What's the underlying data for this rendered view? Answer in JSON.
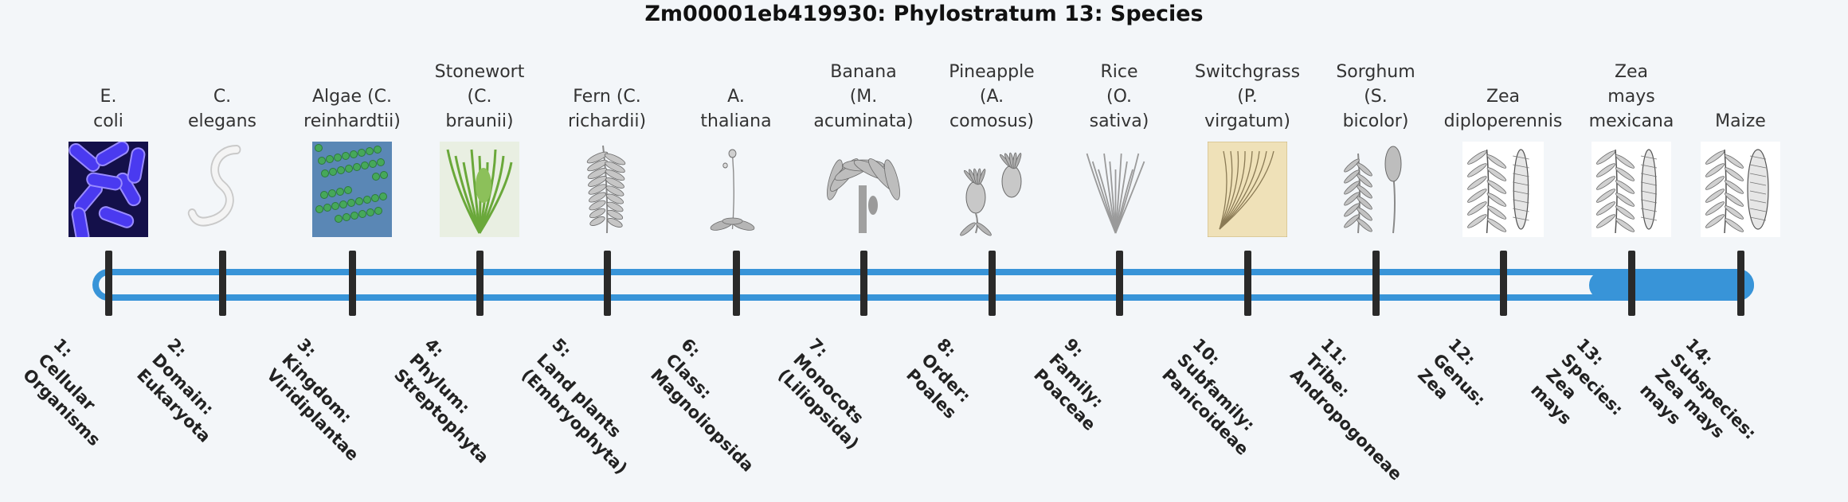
{
  "title": "Zm00001eb419930: Phylostratum 13: Species",
  "current_stratum": 13,
  "colors": {
    "track": "#3894d8",
    "tick": "#2a2a2a",
    "background": "#f3f6f9"
  },
  "organisms": [
    {
      "lines": [
        "E.",
        "coli"
      ],
      "icon": "bacteria-icon"
    },
    {
      "lines": [
        "C.",
        "elegans"
      ],
      "icon": "worm-icon"
    },
    {
      "lines": [
        "Algae (C.",
        "reinhardtii)"
      ],
      "icon": "algae-icon"
    },
    {
      "lines": [
        "Stonewort",
        "(C.",
        "braunii)"
      ],
      "icon": "stonewort-icon"
    },
    {
      "lines": [
        "Fern (C.",
        "richardii)"
      ],
      "icon": "fern-icon"
    },
    {
      "lines": [
        "A.",
        "thaliana"
      ],
      "icon": "arabidopsis-icon"
    },
    {
      "lines": [
        "Banana",
        "(M.",
        "acuminata)"
      ],
      "icon": "banana-plant-icon"
    },
    {
      "lines": [
        "Pineapple",
        "(A.",
        "comosus)"
      ],
      "icon": "pineapple-icon"
    },
    {
      "lines": [
        "Rice",
        "(O.",
        "sativa)"
      ],
      "icon": "rice-plant-icon"
    },
    {
      "lines": [
        "Switchgrass",
        "(P.",
        "virgatum)"
      ],
      "icon": "switchgrass-icon"
    },
    {
      "lines": [
        "Sorghum",
        "(S.",
        "bicolor)"
      ],
      "icon": "sorghum-icon"
    },
    {
      "lines": [
        "Zea",
        "diploperennis"
      ],
      "icon": "zea-diploperennis-icon"
    },
    {
      "lines": [
        "Zea",
        "mays",
        "mexicana"
      ],
      "icon": "teosinte-icon"
    },
    {
      "lines": [
        "Maize"
      ],
      "icon": "maize-icon"
    }
  ],
  "strata": [
    [
      "1:",
      "Cellular",
      "Organisms"
    ],
    [
      "2:",
      "Domain:",
      "Eukaryota"
    ],
    [
      "3:",
      "Kingdom:",
      "Viridiplantae"
    ],
    [
      "4:",
      "Phylum:",
      "Streptophyta"
    ],
    [
      "5:",
      "Land plants",
      "(Embryophyta)"
    ],
    [
      "6:",
      "Class:",
      "Magnoliopsida"
    ],
    [
      "7:",
      "Monocots",
      "(Liliopsida)"
    ],
    [
      "8:",
      "Order:",
      "Poales"
    ],
    [
      "9:",
      "Family:",
      "Poaceae"
    ],
    [
      "10:",
      "Subfamily:",
      "Panicoideae"
    ],
    [
      "11:",
      "Tribe:",
      "Andropogoneae"
    ],
    [
      "12:",
      "Genus:",
      "Zea"
    ],
    [
      "13:",
      "Species:",
      "Zea",
      "mays"
    ],
    [
      "14:",
      "Subspecies:",
      "Zea mays",
      "mays"
    ]
  ]
}
